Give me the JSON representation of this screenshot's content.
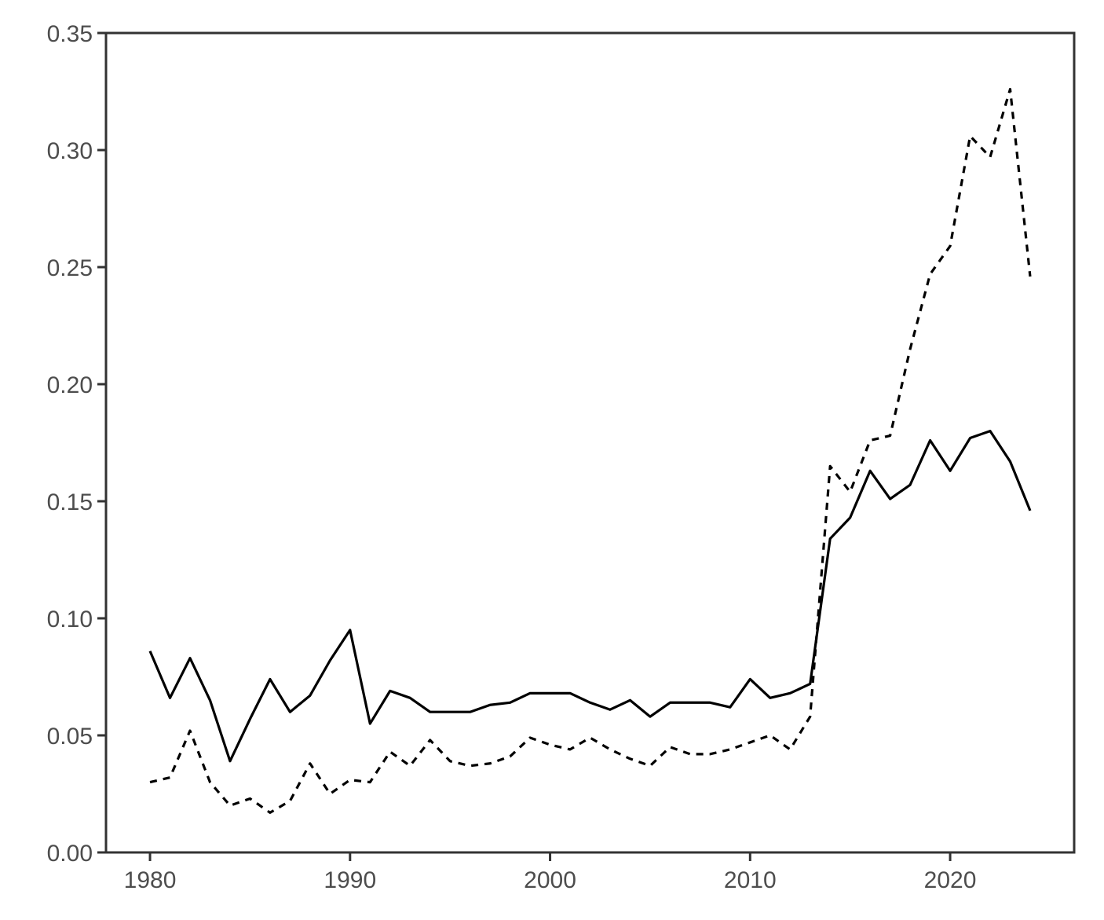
{
  "chart_data": {
    "type": "line",
    "title": "",
    "xlabel": "",
    "ylabel": "",
    "xlim": [
      1977.8,
      2026.2
    ],
    "ylim": [
      0,
      0.35
    ],
    "grid": false,
    "x_ticks": [
      1980,
      1990,
      2000,
      2010,
      2020
    ],
    "x_tick_labels": [
      "1980",
      "1990",
      "2000",
      "2010",
      "2020"
    ],
    "y_ticks": [
      0,
      0.05,
      0.1,
      0.15,
      0.2,
      0.25,
      0.3,
      0.35
    ],
    "y_tick_labels": [
      "0.00",
      "0.05",
      "0.10",
      "0.15",
      "0.20",
      "0.25",
      "0.30",
      "0.35"
    ],
    "x": [
      1980,
      1981,
      1982,
      1983,
      1984,
      1985,
      1986,
      1987,
      1988,
      1989,
      1990,
      1991,
      1992,
      1993,
      1994,
      1995,
      1996,
      1997,
      1998,
      1999,
      2000,
      2001,
      2002,
      2003,
      2004,
      2005,
      2006,
      2007,
      2008,
      2009,
      2010,
      2011,
      2012,
      2013,
      2014,
      2015,
      2016,
      2017,
      2018,
      2019,
      2020,
      2021,
      2022,
      2023,
      2024
    ],
    "series": [
      {
        "style": "solid",
        "color": "#000000",
        "values": [
          0.086,
          0.066,
          0.083,
          0.065,
          0.039,
          0.057,
          0.074,
          0.06,
          0.067,
          0.082,
          0.095,
          0.055,
          0.069,
          0.066,
          0.06,
          0.06,
          0.06,
          0.063,
          0.064,
          0.068,
          0.068,
          0.068,
          0.064,
          0.061,
          0.065,
          0.058,
          0.064,
          0.064,
          0.064,
          0.062,
          0.074,
          0.066,
          0.068,
          0.072,
          0.134,
          0.143,
          0.163,
          0.151,
          0.157,
          0.176,
          0.163,
          0.177,
          0.18,
          0.167,
          0.146
        ]
      },
      {
        "style": "dashed",
        "color": "#000000",
        "values": [
          0.03,
          0.032,
          0.052,
          0.03,
          0.02,
          0.023,
          0.017,
          0.022,
          0.038,
          0.025,
          0.031,
          0.03,
          0.043,
          0.037,
          0.048,
          0.039,
          0.037,
          0.038,
          0.041,
          0.049,
          0.046,
          0.044,
          0.049,
          0.044,
          0.04,
          0.037,
          0.045,
          0.042,
          0.042,
          0.044,
          0.047,
          0.05,
          0.044,
          0.058,
          0.165,
          0.154,
          0.176,
          0.178,
          0.215,
          0.247,
          0.259,
          0.306,
          0.297,
          0.326,
          0.246
        ]
      }
    ]
  }
}
